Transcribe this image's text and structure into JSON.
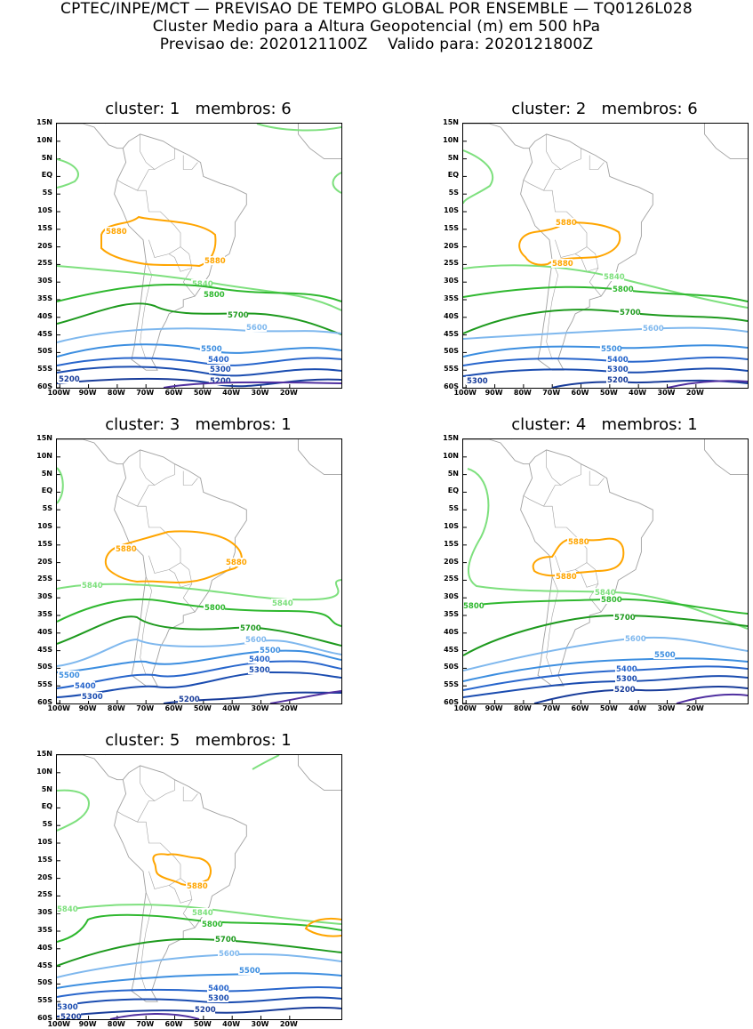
{
  "header": {
    "line1": "CPTEC/INPE/MCT — PREVISAO DE TEMPO GLOBAL POR ENSEMBLE — TQ0126L028",
    "line2": "Cluster Medio para a Altura Geopotencial (m) em 500 hPa",
    "line3": "Previsao de: 2020121100Z    Valido para: 2020121800Z"
  },
  "colors": {
    "c5880": "#ffa500",
    "c5840": "#7ee07e",
    "c5800": "#2fb82f",
    "c5700": "#1e9a1e",
    "c5600": "#7fb8ee",
    "c5500": "#3c8ee0",
    "c5400": "#2866cc",
    "c5300": "#1a4cb0",
    "c5200": "#183c9a",
    "c5100": "#5030a0",
    "coast": "#a0a0a0"
  },
  "lat_labels": [
    "15N",
    "10N",
    "5N",
    "EQ",
    "5S",
    "10S",
    "15S",
    "20S",
    "25S",
    "30S",
    "35S",
    "40S",
    "45S",
    "50S",
    "55S",
    "60S"
  ],
  "lon_labels": [
    "100W",
    "90W",
    "80W",
    "70W",
    "60W",
    "50W",
    "40W",
    "30W",
    "20W"
  ],
  "panels": [
    {
      "title": "cluster: 1   membros: 6"
    },
    {
      "title": "cluster: 2   membros: 6"
    },
    {
      "title": "cluster: 3   membros: 1"
    },
    {
      "title": "cluster: 4   membros: 1"
    },
    {
      "title": "cluster: 5   membros: 1"
    }
  ],
  "contour_labels": {
    "v5880": "5880",
    "v5840": "5840",
    "v5800": "5800",
    "v5700": "5700",
    "v5600": "5600",
    "v5500": "5500",
    "v5400": "5400",
    "v5300": "5300",
    "v5200": "5200"
  }
}
